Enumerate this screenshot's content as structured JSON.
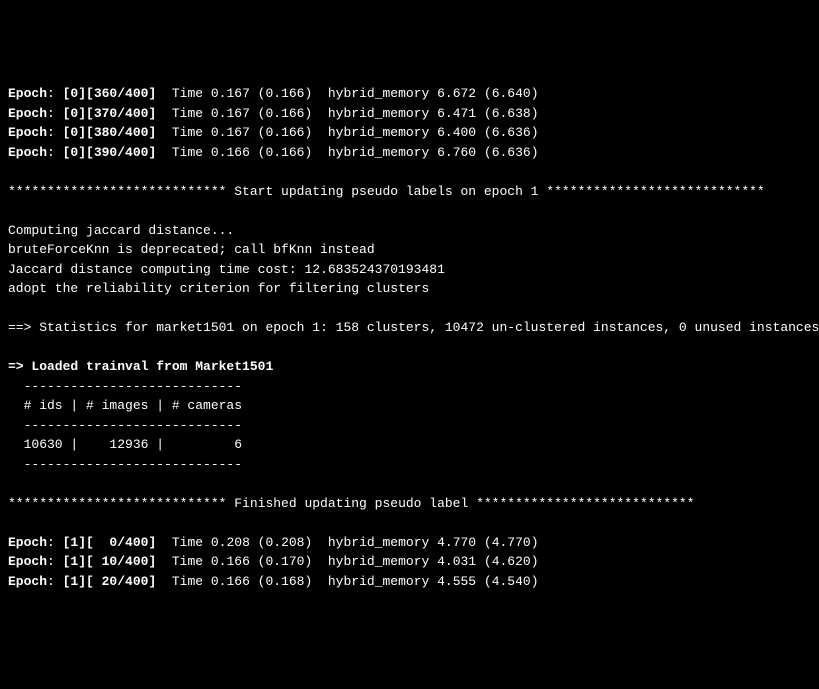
{
  "epoch_lines_top": [
    {
      "epoch": "0",
      "iter": "360",
      "total": "400",
      "time_cur": "0.167",
      "time_avg": "0.166",
      "mem_cur": "6.672",
      "mem_avg": "6.640"
    },
    {
      "epoch": "0",
      "iter": "370",
      "total": "400",
      "time_cur": "0.167",
      "time_avg": "0.166",
      "mem_cur": "6.471",
      "mem_avg": "6.638"
    },
    {
      "epoch": "0",
      "iter": "380",
      "total": "400",
      "time_cur": "0.167",
      "time_avg": "0.166",
      "mem_cur": "6.400",
      "mem_avg": "6.636"
    },
    {
      "epoch": "0",
      "iter": "390",
      "total": "400",
      "time_cur": "0.166",
      "time_avg": "0.166",
      "mem_cur": "6.760",
      "mem_avg": "6.636"
    }
  ],
  "start_update_line": "**************************** Start updating pseudo labels on epoch 1 ****************************",
  "computing_jaccard": "Computing jaccard distance...",
  "brute_force_warning": "bruteForceKnn is deprecated; call bfKnn instead",
  "jaccard_time": "Jaccard distance computing time cost: 12.683524370193481",
  "reliability": "adopt the reliability criterion for filtering clusters",
  "stats_line": "==> Statistics for market1501 on epoch 1: 158 clusters, 10472 un-clustered instances, 0 unused instances",
  "loaded_line": "=> Loaded trainval from Market1501",
  "table_sep": "  ----------------------------",
  "table_header": "  # ids | # images | # cameras",
  "table_row": "  10630 |    12936 |         6",
  "finished_line": "**************************** Finished updating pseudo label ****************************",
  "epoch_lines_bottom": [
    {
      "epoch": "1",
      "iter": "  0",
      "total": "400",
      "time_cur": "0.208",
      "time_avg": "0.208",
      "mem_cur": "4.770",
      "mem_avg": "4.770"
    },
    {
      "epoch": "1",
      "iter": " 10",
      "total": "400",
      "time_cur": "0.166",
      "time_avg": "0.170",
      "mem_cur": "4.031",
      "mem_avg": "4.620"
    },
    {
      "epoch": "1",
      "iter": " 20",
      "total": "400",
      "time_cur": "0.166",
      "time_avg": "0.168",
      "mem_cur": "4.555",
      "mem_avg": "4.540"
    }
  ],
  "labels": {
    "epoch": "Epoch",
    "time": "Time",
    "hybrid_memory": "hybrid_memory"
  }
}
